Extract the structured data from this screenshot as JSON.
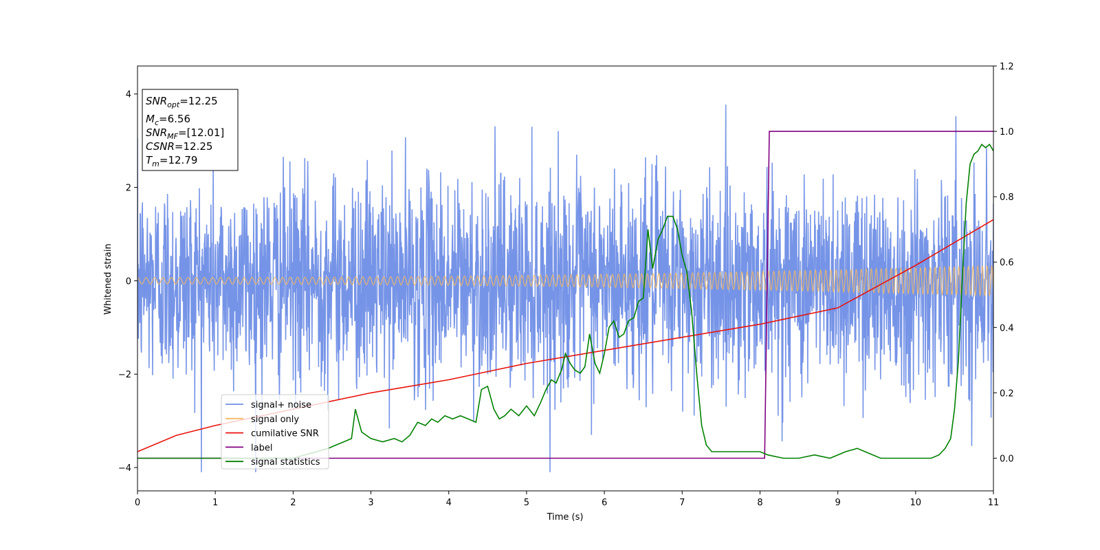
{
  "chart_data": {
    "type": "line",
    "xlabel": "Time (s)",
    "ylabel": "Whitened strain",
    "xlim": [
      0,
      11
    ],
    "ylim": [
      -4.5,
      4.6
    ],
    "y2lim": [
      -0.1,
      1.2
    ],
    "x_ticks": [
      "0",
      "1",
      "2",
      "3",
      "4",
      "5",
      "6",
      "7",
      "8",
      "9",
      "10",
      "11"
    ],
    "y_ticks": [
      "−4",
      "−2",
      "0",
      "2",
      "4"
    ],
    "y2_ticks": [
      "0.0",
      "0.2",
      "0.4",
      "0.6",
      "0.8",
      "1.0",
      "1.2"
    ],
    "legend_position": "lower-left",
    "info_box": {
      "snr_opt_label": "SNR",
      "snr_opt_sub": "opt",
      "snr_opt_value": "=12.25",
      "mc_label": "M",
      "mc_sub": "c",
      "mc_value": "=6.56",
      "snr_mf_label": "SNR",
      "snr_mf_sub": "MF",
      "snr_mf_value": "=[12.01]",
      "csnr_label": "CSNR",
      "csnr_value": "=12.25",
      "tm_label": "T",
      "tm_sub": "m",
      "tm_value": "=12.79"
    },
    "series": [
      {
        "name": "signal+ noise",
        "color": "#6f8ee6",
        "axis": "left",
        "description_type": "noise",
        "noise_std": 1.1,
        "x_range": [
          0,
          11
        ]
      },
      {
        "name": "signal only",
        "color": "#f5b860",
        "axis": "left",
        "envelope_start": 0.07,
        "envelope_end": 0.33,
        "x_range": [
          0,
          11
        ]
      },
      {
        "name": "cumilative SNR",
        "color": "#e8120c",
        "axis": "right",
        "x": [
          0,
          0.5,
          1,
          2,
          3,
          4,
          5,
          6,
          7,
          8,
          9,
          10,
          10.5,
          11
        ],
        "y": [
          0.02,
          0.07,
          0.1,
          0.15,
          0.2,
          0.24,
          0.29,
          0.33,
          0.37,
          0.41,
          0.46,
          0.59,
          0.66,
          0.73
        ]
      },
      {
        "name": "label",
        "color": "#800080",
        "axis": "right",
        "x": [
          0,
          8.06,
          8.12,
          11
        ],
        "y": [
          0,
          0,
          1,
          1
        ]
      },
      {
        "name": "signal statistics",
        "color": "#008000",
        "axis": "right",
        "x": [
          0,
          0.5,
          1,
          1.5,
          2,
          2.3,
          2.45,
          2.55,
          2.65,
          2.75,
          2.8,
          2.88,
          3.0,
          3.15,
          3.3,
          3.4,
          3.5,
          3.6,
          3.7,
          3.78,
          3.86,
          3.95,
          4.05,
          4.15,
          4.25,
          4.35,
          4.42,
          4.5,
          4.58,
          4.65,
          4.72,
          4.8,
          4.9,
          5.0,
          5.1,
          5.18,
          5.25,
          5.32,
          5.38,
          5.45,
          5.5,
          5.56,
          5.62,
          5.69,
          5.75,
          5.81,
          5.88,
          5.94,
          6.0,
          6.06,
          6.12,
          6.19,
          6.25,
          6.31,
          6.38,
          6.44,
          6.5,
          6.56,
          6.62,
          6.69,
          6.75,
          6.81,
          6.88,
          6.94,
          7.0,
          7.06,
          7.12,
          7.19,
          7.25,
          7.31,
          7.38,
          7.5,
          7.6,
          7.7,
          7.8,
          7.9,
          8.0,
          8.1,
          8.3,
          8.5,
          8.7,
          8.9,
          9.1,
          9.25,
          9.35,
          9.45,
          9.55,
          9.65,
          9.8,
          10.0,
          10.1,
          10.2,
          10.3,
          10.38,
          10.45,
          10.5,
          10.55,
          10.6,
          10.65,
          10.7,
          10.75,
          10.8,
          10.85,
          10.9,
          10.95,
          11.0
        ],
        "y": [
          0,
          0.0,
          0.0,
          0.0,
          0.0,
          0.02,
          0.03,
          0.04,
          0.05,
          0.06,
          0.15,
          0.08,
          0.06,
          0.05,
          0.06,
          0.05,
          0.07,
          0.11,
          0.1,
          0.12,
          0.11,
          0.13,
          0.12,
          0.13,
          0.12,
          0.11,
          0.21,
          0.22,
          0.15,
          0.12,
          0.13,
          0.15,
          0.13,
          0.16,
          0.13,
          0.17,
          0.21,
          0.24,
          0.23,
          0.27,
          0.32,
          0.29,
          0.27,
          0.26,
          0.28,
          0.38,
          0.29,
          0.26,
          0.32,
          0.4,
          0.42,
          0.37,
          0.38,
          0.42,
          0.43,
          0.48,
          0.49,
          0.7,
          0.58,
          0.67,
          0.7,
          0.74,
          0.74,
          0.7,
          0.62,
          0.57,
          0.45,
          0.25,
          0.1,
          0.04,
          0.02,
          0.02,
          0.02,
          0.02,
          0.02,
          0.02,
          0.02,
          0.01,
          0.0,
          0.0,
          0.01,
          0.0,
          0.02,
          0.03,
          0.02,
          0.01,
          0.0,
          0.0,
          0.0,
          0.0,
          0.0,
          0.0,
          0.01,
          0.03,
          0.06,
          0.15,
          0.3,
          0.55,
          0.78,
          0.9,
          0.93,
          0.94,
          0.96,
          0.95,
          0.96,
          0.94
        ]
      }
    ]
  }
}
